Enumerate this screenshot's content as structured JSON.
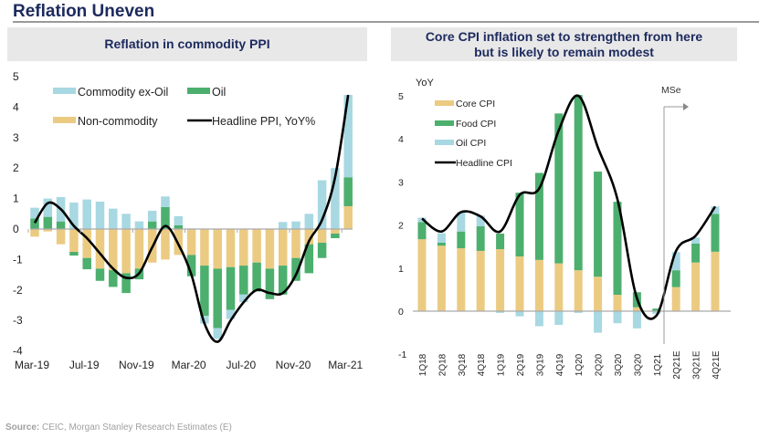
{
  "page": {
    "title": "Reflation Uneven",
    "source_label": "Source:",
    "source_text": "CEIC, Morgan Stanley Research Estimates (E)"
  },
  "colors": {
    "commodity_ex_oil": "#a8d8e2",
    "oil": "#4caf6e",
    "non_commodity": "#ebcb82",
    "headline": "#000000",
    "header_bg": "#e8e8e8",
    "title_color": "#1c2a5e"
  },
  "chart_data": [
    {
      "type": "bar",
      "stacked": true,
      "title": "Reflation in commodity PPI",
      "xlabel": "",
      "ylabel": "",
      "ylim": [
        -4,
        5
      ],
      "yticks": [
        "5",
        "4",
        "3",
        "2",
        "1",
        "0",
        "-1",
        "-2",
        "-3",
        "-4"
      ],
      "grid": false,
      "legend_position": "top",
      "categories": [
        "Mar-19",
        "Apr-19",
        "May-19",
        "Jun-19",
        "Jul-19",
        "Aug-19",
        "Sep-19",
        "Oct-19",
        "Nov-19",
        "Dec-19",
        "Jan-20",
        "Feb-20",
        "Mar-20",
        "Apr-20",
        "May-20",
        "Jun-20",
        "Jul-20",
        "Aug-20",
        "Sep-20",
        "Oct-20",
        "Nov-20",
        "Dec-20",
        "Jan-21",
        "Feb-21",
        "Mar-21"
      ],
      "xtick_labels": [
        "Mar-19",
        "Jul-19",
        "Nov-19",
        "Mar-20",
        "Jul-20",
        "Nov-20",
        "Mar-21"
      ],
      "series": [
        {
          "name": "Non-commodity",
          "kind": "bar",
          "values": [
            -0.25,
            -0.08,
            -0.5,
            -0.75,
            -0.95,
            -1.3,
            -1.35,
            -1.45,
            -1.3,
            -1.1,
            -1.0,
            -0.85,
            -0.85,
            -1.2,
            -1.3,
            -1.25,
            -1.2,
            -1.1,
            -1.3,
            -1.2,
            -0.95,
            -0.5,
            -0.45,
            -0.15,
            0.75
          ]
        },
        {
          "name": "Oil",
          "kind": "bar",
          "values": [
            0.35,
            0.4,
            0.25,
            -0.12,
            -0.37,
            -0.4,
            -0.55,
            -0.65,
            -0.35,
            0.25,
            0.72,
            0.12,
            -0.7,
            -1.65,
            -1.95,
            -1.4,
            -0.95,
            -0.95,
            -1.0,
            -0.95,
            -0.75,
            -0.95,
            -0.5,
            -0.15,
            0.95
          ]
        },
        {
          "name": "Commodity ex-Oil",
          "kind": "bar",
          "values": [
            0.35,
            0.6,
            0.8,
            0.87,
            0.97,
            0.9,
            0.67,
            0.5,
            0.25,
            0.35,
            0.35,
            0.3,
            0.02,
            -0.25,
            -0.35,
            -0.3,
            -0.25,
            0,
            0,
            0.23,
            0.25,
            0.5,
            1.6,
            2.0,
            2.7
          ]
        },
        {
          "name": "Headline PPI, YoY%",
          "kind": "line",
          "values": [
            0.2,
            0.85,
            0.65,
            0.1,
            -0.3,
            -0.8,
            -1.3,
            -1.6,
            -1.45,
            -0.6,
            0.1,
            -0.5,
            -1.5,
            -3.1,
            -3.7,
            -3.0,
            -2.4,
            -2.0,
            -2.1,
            -2.1,
            -1.5,
            -0.4,
            0.3,
            1.7,
            4.4
          ]
        }
      ]
    },
    {
      "type": "bar",
      "stacked": true,
      "title": "Core CPI inflation set to strengthen from here but is likely to remain modest",
      "title_lines": [
        "Core CPI inflation set to strengthen from here",
        "but is likely to remain modest"
      ],
      "xlabel": "",
      "ylabel": "YoY",
      "ylim": [
        -1,
        5
      ],
      "yticks": [
        "5",
        "4",
        "3",
        "2",
        "1",
        "0",
        "-1"
      ],
      "grid": false,
      "legend_position": "top-left",
      "annotation": "MSe",
      "categories": [
        "1Q18",
        "2Q18",
        "3Q18",
        "4Q18",
        "1Q19",
        "2Q19",
        "3Q19",
        "4Q19",
        "1Q20",
        "2Q20",
        "3Q20",
        "3Q20",
        "1Q21",
        "2Q21E",
        "3Q21E",
        "4Q21E"
      ],
      "series": [
        {
          "name": "Core CPI",
          "kind": "bar",
          "values": [
            1.67,
            1.52,
            1.46,
            1.4,
            1.44,
            1.27,
            1.19,
            1.11,
            0.95,
            0.8,
            0.38,
            0.09,
            0.0,
            0.56,
            1.13,
            1.38
          ]
        },
        {
          "name": "Food CPI",
          "kind": "bar",
          "values": [
            0.4,
            0.07,
            0.39,
            0.57,
            0.36,
            1.48,
            2.02,
            3.48,
            4.07,
            2.44,
            2.16,
            0.35,
            0.06,
            0.39,
            0.44,
            0.88
          ]
        },
        {
          "name": "Oil CPI",
          "kind": "bar",
          "values": [
            0.1,
            0.22,
            0.45,
            0.25,
            -0.04,
            -0.12,
            -0.35,
            -0.32,
            -0.04,
            -0.5,
            -0.28,
            -0.4,
            -0.06,
            0.42,
            0.14,
            0.17
          ]
        },
        {
          "name": "Headline CPI",
          "kind": "line",
          "values": [
            2.15,
            1.85,
            2.3,
            2.2,
            1.85,
            2.7,
            2.85,
            4.2,
            5.0,
            3.8,
            2.6,
            0.3,
            -0.1,
            1.4,
            1.75,
            2.43
          ]
        }
      ]
    }
  ]
}
